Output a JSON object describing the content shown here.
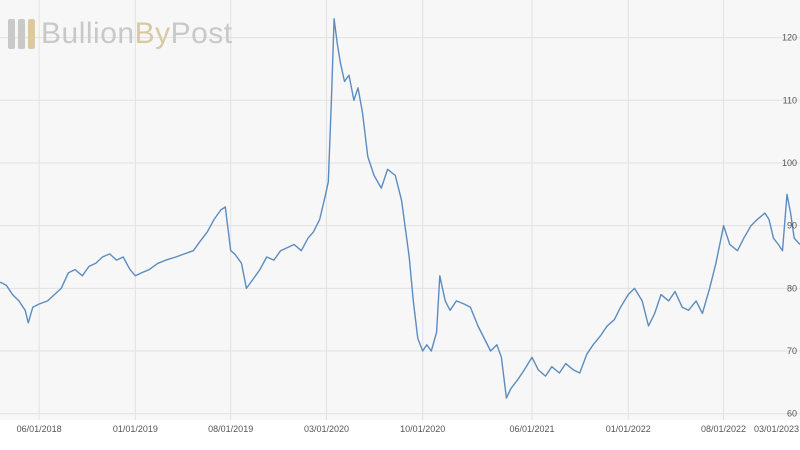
{
  "brand": {
    "part1": "Bullion",
    "part2": "By",
    "part3": "Post",
    "colors": {
      "grey": "#c8c8c8",
      "gold": "#d8c9a3",
      "mark_grey": "#c9c9c9",
      "mark_gold": "#dcc9a0"
    }
  },
  "colors": {
    "line": "#5b8cbf",
    "grid": "#e2e2e2",
    "plot_bg": "#f7f7f7",
    "axis_text": "#555555"
  },
  "chart_data": {
    "type": "line",
    "title": "",
    "xlabel": "",
    "ylabel": "",
    "ylim": [
      59,
      126
    ],
    "xlim": [
      "2018-03-06",
      "2023-01-18"
    ],
    "grid": true,
    "legend": "none",
    "y_ticks": [
      60,
      70,
      80,
      90,
      100,
      110,
      120
    ],
    "x_ticks": [
      {
        "date": "2018-06-01",
        "label": "06/01/2018"
      },
      {
        "date": "2019-01-01",
        "label": "01/01/2019"
      },
      {
        "date": "2019-08-01",
        "label": "08/01/2019"
      },
      {
        "date": "2020-03-01",
        "label": "03/01/2020"
      },
      {
        "date": "2020-10-01",
        "label": "10/01/2020"
      },
      {
        "date": "2021-06-01",
        "label": "06/01/2021"
      },
      {
        "date": "2022-01-01",
        "label": "01/01/2022"
      },
      {
        "date": "2022-08-01",
        "label": "08/01/2022"
      },
      {
        "date": "2023-03-01",
        "label": "03/01/2023"
      }
    ],
    "series": [
      {
        "points": [
          [
            "2018-03-06",
            81
          ],
          [
            "2018-03-20",
            80.5
          ],
          [
            "2018-04-03",
            79
          ],
          [
            "2018-04-17",
            78
          ],
          [
            "2018-05-01",
            76.5
          ],
          [
            "2018-05-08",
            74.5
          ],
          [
            "2018-05-18",
            77
          ],
          [
            "2018-06-01",
            77.5
          ],
          [
            "2018-06-20",
            78
          ],
          [
            "2018-07-05",
            79
          ],
          [
            "2018-07-20",
            80
          ],
          [
            "2018-08-05",
            82.5
          ],
          [
            "2018-08-20",
            83
          ],
          [
            "2018-09-05",
            82
          ],
          [
            "2018-09-20",
            83.5
          ],
          [
            "2018-10-05",
            84
          ],
          [
            "2018-10-20",
            85
          ],
          [
            "2018-11-05",
            85.5
          ],
          [
            "2018-11-20",
            84.5
          ],
          [
            "2018-12-05",
            85
          ],
          [
            "2018-12-20",
            83
          ],
          [
            "2019-01-01",
            82
          ],
          [
            "2019-01-15",
            82.5
          ],
          [
            "2019-02-01",
            83
          ],
          [
            "2019-02-20",
            84
          ],
          [
            "2019-03-10",
            84.5
          ],
          [
            "2019-04-01",
            85
          ],
          [
            "2019-04-20",
            85.5
          ],
          [
            "2019-05-10",
            86
          ],
          [
            "2019-05-25",
            87.5
          ],
          [
            "2019-06-10",
            89
          ],
          [
            "2019-06-25",
            91
          ],
          [
            "2019-07-10",
            92.5
          ],
          [
            "2019-07-20",
            93
          ],
          [
            "2019-08-01",
            86
          ],
          [
            "2019-08-10",
            85.5
          ],
          [
            "2019-08-25",
            84
          ],
          [
            "2019-09-05",
            80
          ],
          [
            "2019-09-20",
            81.5
          ],
          [
            "2019-10-05",
            83
          ],
          [
            "2019-10-20",
            85
          ],
          [
            "2019-11-05",
            84.5
          ],
          [
            "2019-11-20",
            86
          ],
          [
            "2019-12-05",
            86.5
          ],
          [
            "2019-12-20",
            87
          ],
          [
            "2020-01-05",
            86
          ],
          [
            "2020-01-20",
            88
          ],
          [
            "2020-02-01",
            89
          ],
          [
            "2020-02-15",
            91
          ],
          [
            "2020-02-28",
            95
          ],
          [
            "2020-03-05",
            97
          ],
          [
            "2020-03-12",
            110
          ],
          [
            "2020-03-18",
            123
          ],
          [
            "2020-03-25",
            119
          ],
          [
            "2020-04-01",
            116
          ],
          [
            "2020-04-10",
            113
          ],
          [
            "2020-04-20",
            114
          ],
          [
            "2020-05-01",
            110
          ],
          [
            "2020-05-10",
            112
          ],
          [
            "2020-05-20",
            108
          ],
          [
            "2020-06-01",
            101
          ],
          [
            "2020-06-15",
            98
          ],
          [
            "2020-07-01",
            96
          ],
          [
            "2020-07-15",
            99
          ],
          [
            "2020-08-01",
            98
          ],
          [
            "2020-08-15",
            94
          ],
          [
            "2020-09-01",
            85
          ],
          [
            "2020-09-10",
            78
          ],
          [
            "2020-09-20",
            72
          ],
          [
            "2020-10-01",
            70
          ],
          [
            "2020-10-10",
            71
          ],
          [
            "2020-10-20",
            70
          ],
          [
            "2020-11-01",
            73
          ],
          [
            "2020-11-08",
            82
          ],
          [
            "2020-11-20",
            78
          ],
          [
            "2020-12-01",
            76.5
          ],
          [
            "2020-12-15",
            78
          ],
          [
            "2021-01-01",
            77.5
          ],
          [
            "2021-01-15",
            77
          ],
          [
            "2021-02-01",
            74
          ],
          [
            "2021-02-15",
            72
          ],
          [
            "2021-03-01",
            70
          ],
          [
            "2021-03-15",
            71
          ],
          [
            "2021-03-25",
            69
          ],
          [
            "2021-04-05",
            62.5
          ],
          [
            "2021-04-15",
            64
          ],
          [
            "2021-05-01",
            65.5
          ],
          [
            "2021-05-15",
            67
          ],
          [
            "2021-06-01",
            69
          ],
          [
            "2021-06-15",
            67
          ],
          [
            "2021-07-01",
            66
          ],
          [
            "2021-07-15",
            67.5
          ],
          [
            "2021-08-01",
            66.5
          ],
          [
            "2021-08-15",
            68
          ],
          [
            "2021-09-01",
            67
          ],
          [
            "2021-09-15",
            66.5
          ],
          [
            "2021-10-01",
            69.5
          ],
          [
            "2021-10-15",
            71
          ],
          [
            "2021-11-01",
            72.5
          ],
          [
            "2021-11-15",
            74
          ],
          [
            "2021-12-01",
            75
          ],
          [
            "2021-12-15",
            77
          ],
          [
            "2022-01-01",
            79
          ],
          [
            "2022-01-15",
            80
          ],
          [
            "2022-02-01",
            78
          ],
          [
            "2022-02-15",
            74
          ],
          [
            "2022-03-01",
            76
          ],
          [
            "2022-03-15",
            79
          ],
          [
            "2022-04-01",
            78
          ],
          [
            "2022-04-15",
            79.5
          ],
          [
            "2022-05-01",
            77
          ],
          [
            "2022-05-15",
            76.5
          ],
          [
            "2022-06-01",
            78
          ],
          [
            "2022-06-15",
            76
          ],
          [
            "2022-07-01",
            80
          ],
          [
            "2022-07-15",
            84
          ],
          [
            "2022-08-01",
            90
          ],
          [
            "2022-08-15",
            87
          ],
          [
            "2022-09-01",
            86
          ],
          [
            "2022-09-15",
            88
          ],
          [
            "2022-10-01",
            90
          ],
          [
            "2022-10-15",
            91
          ],
          [
            "2022-11-01",
            92
          ],
          [
            "2022-11-10",
            91
          ],
          [
            "2022-11-20",
            88
          ],
          [
            "2022-12-01",
            87
          ],
          [
            "2022-12-10",
            86
          ],
          [
            "2022-12-20",
            95
          ],
          [
            "2022-12-28",
            92
          ],
          [
            "2023-01-05",
            88
          ],
          [
            "2023-01-18",
            87
          ]
        ]
      }
    ]
  }
}
